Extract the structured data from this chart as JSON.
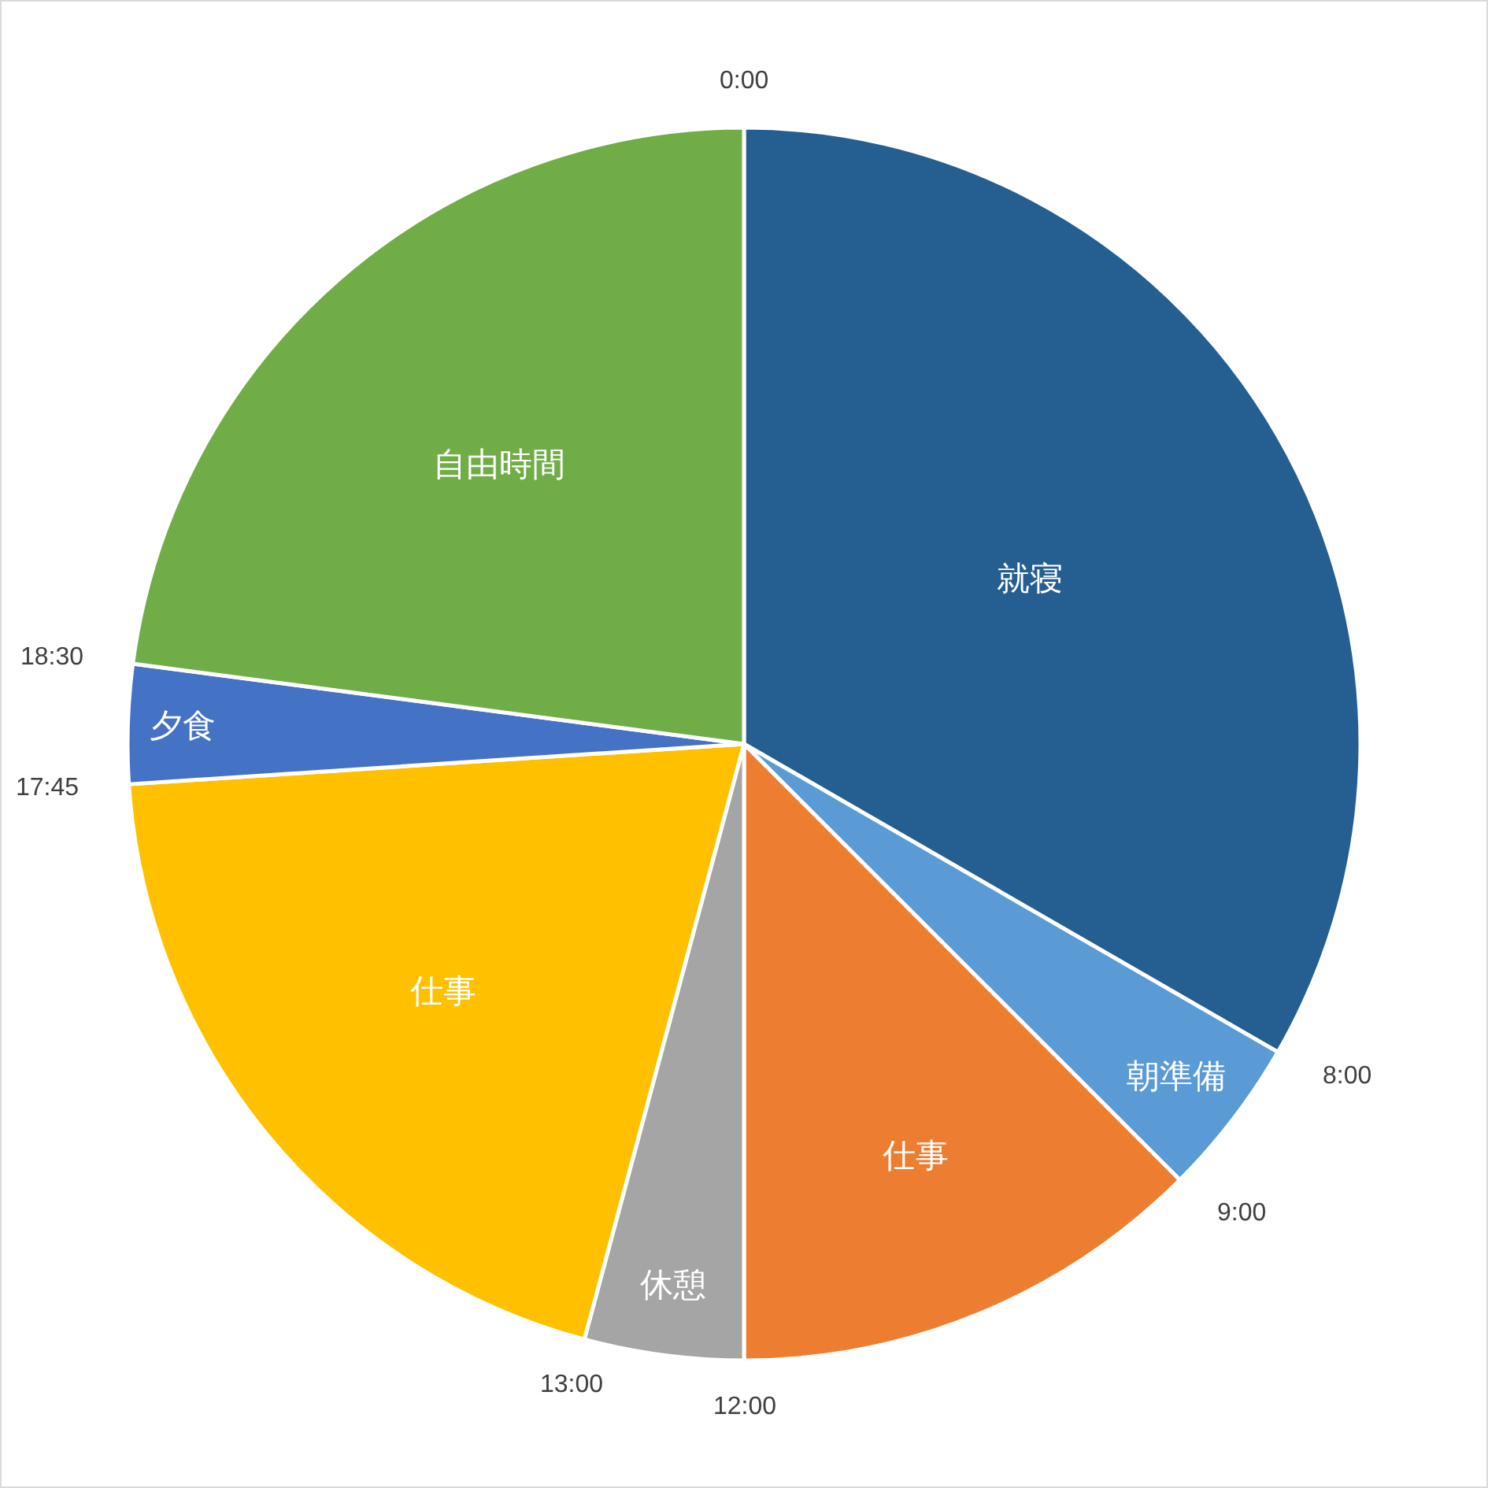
{
  "chart_data": {
    "type": "pie",
    "categories": [
      "就寝",
      "朝準備",
      "仕事",
      "休憩",
      "仕事",
      "夕食",
      "自由時間"
    ],
    "values": [
      33.33,
      4.17,
      12.5,
      4.17,
      19.79,
      3.12,
      22.92
    ],
    "colors": [
      "#255e91",
      "#5b9bd5",
      "#ed7d31",
      "#a5a5a5",
      "#ffc000",
      "#4472c4",
      "#70ad47"
    ],
    "annotations": [
      "0:00",
      "8:00",
      "9:00",
      "12:00",
      "13:00",
      "17:45",
      "18:30"
    ],
    "legend": false
  }
}
